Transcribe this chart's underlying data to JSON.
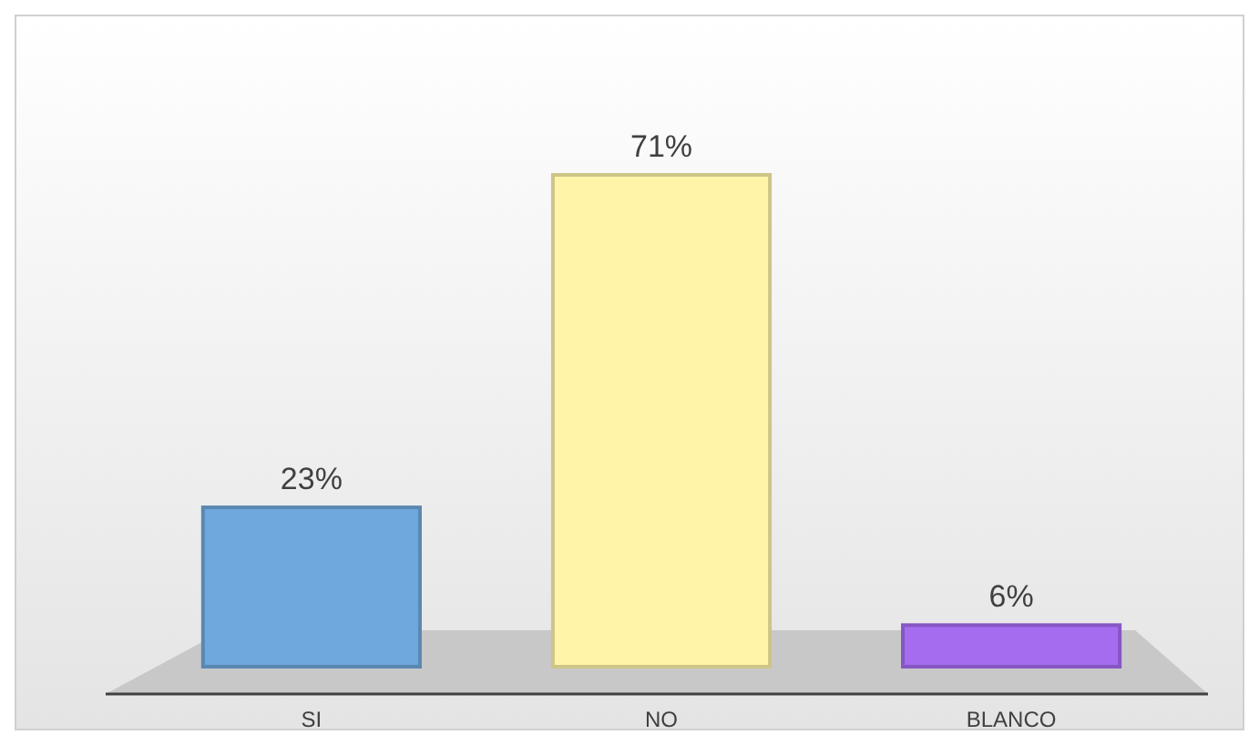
{
  "chart_data": {
    "type": "bar",
    "categories": [
      "SI",
      "NO",
      "BLANCO"
    ],
    "values": [
      23,
      71,
      6
    ],
    "colors": [
      "#6fa8dc",
      "#fff4a8",
      "#a66cf0"
    ],
    "value_labels": [
      "23%",
      "71%",
      "6%"
    ]
  }
}
